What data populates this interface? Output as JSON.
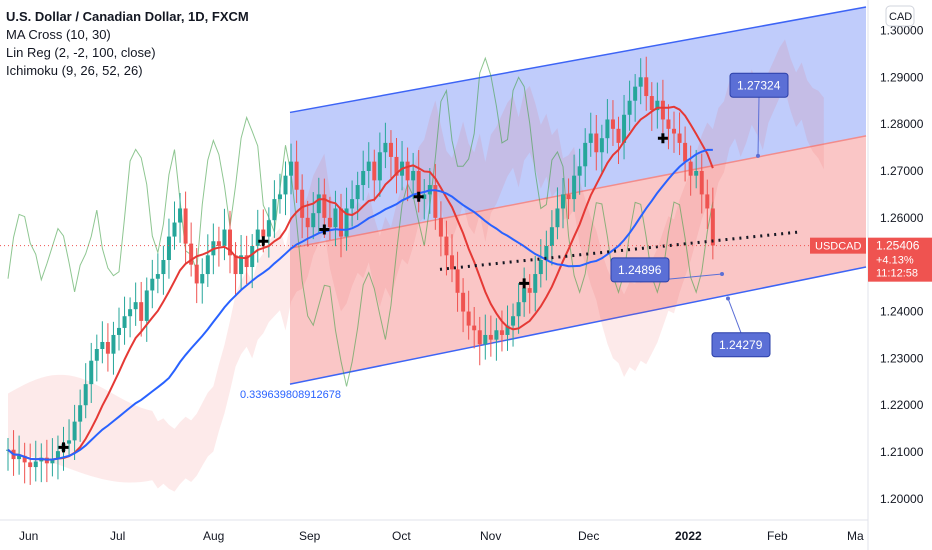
{
  "chart_data": {
    "type": "candlestick",
    "symbol_title": "U.S. Dollar / Canadian Dollar, 1D, FXCM",
    "indicators": [
      "MA Cross (10, 30)",
      "Lin Reg (2, -2, 100, close)",
      "Ichimoku (9, 26, 52, 26)"
    ],
    "currency": "CAD",
    "ticker": "USDCAD",
    "last_price": "1.25406",
    "change_percent": "+4.13%",
    "countdown": "11:12:58",
    "y_ticks": [
      "1.30000",
      "1.29000",
      "1.28000",
      "1.27000",
      "1.26000",
      "1.25000",
      "1.24000",
      "1.23000",
      "1.22000",
      "1.21000",
      "1.20000"
    ],
    "x_ticks": [
      "Jun",
      "Jul",
      "Aug",
      "Sep",
      "Oct",
      "Nov",
      "Dec",
      "2022",
      "Feb",
      "Ma"
    ],
    "ylim": [
      1.1955,
      1.3065
    ],
    "annotations": [
      {
        "text": "1.27324",
        "value": 1.27324
      },
      {
        "text": "1.24896",
        "value": 1.24896
      },
      {
        "text": "1.24279",
        "value": 1.24279
      },
      {
        "text": "0.339639808912678"
      }
    ],
    "regression_channel": {
      "upper_start": 1.2825,
      "upper_end": 1.305,
      "mid_start": 1.2535,
      "mid_end": 1.2775,
      "lower_start": 1.2245,
      "lower_end": 1.2495
    },
    "support_line_value": 1.2475,
    "ma_cross_marker_values": [
      1.211,
      1.255,
      1.2575,
      1.2645,
      1.246,
      1.277
    ],
    "colors": {
      "up": "#26a69a",
      "down": "#ef5350",
      "fast_ma": "#e53935",
      "slow_ma": "#2962ff",
      "channel_upper": "#3d64f5",
      "channel_lower": "#f28c8c",
      "price_label": "#ef5350",
      "note_fill": "#5b6fd6"
    },
    "closes": [
      1.2105,
      1.2085,
      1.2092,
      1.2078,
      1.2068,
      1.208,
      1.2088,
      1.2076,
      1.2085,
      1.2102,
      1.2118,
      1.2125,
      1.2165,
      1.22,
      1.2245,
      1.2295,
      1.232,
      1.2335,
      1.231,
      1.235,
      1.2365,
      1.239,
      1.2405,
      1.242,
      1.238,
      1.2445,
      1.247,
      1.248,
      1.251,
      1.256,
      1.259,
      1.262,
      1.2545,
      1.25,
      1.246,
      1.248,
      1.252,
      1.255,
      1.254,
      1.2575,
      1.252,
      1.248,
      1.252,
      1.2495,
      1.254,
      1.2575,
      1.256,
      1.2595,
      1.264,
      1.265,
      1.269,
      1.272,
      1.266,
      1.26,
      1.258,
      1.261,
      1.265,
      1.26,
      1.258,
      1.262,
      1.256,
      1.262,
      1.264,
      1.267,
      1.27,
      1.272,
      1.268,
      1.274,
      1.276,
      1.273,
      1.269,
      1.272,
      1.268,
      1.27,
      1.264,
      1.265,
      1.267,
      1.26,
      1.256,
      1.252,
      1.249,
      1.244,
      1.24,
      1.237,
      1.236,
      1.233,
      1.235,
      1.234,
      1.236,
      1.235,
      1.237,
      1.239,
      1.242,
      1.245,
      1.244,
      1.248,
      1.251,
      1.254,
      1.258,
      1.262,
      1.265,
      1.264,
      1.269,
      1.271,
      1.276,
      1.278,
      1.274,
      1.277,
      1.281,
      1.279,
      1.276,
      1.282,
      1.285,
      1.288,
      1.29,
      1.286,
      1.283,
      1.285,
      1.281,
      1.279,
      1.278,
      1.276,
      1.272,
      1.269,
      1.27,
      1.265,
      1.262,
      1.2541
    ]
  }
}
